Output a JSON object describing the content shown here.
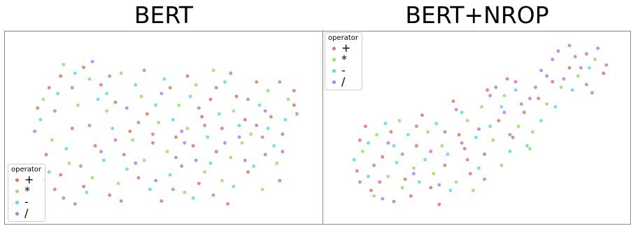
{
  "chart_data": [
    {
      "type": "scatter",
      "title": "BERT",
      "xlim": [
        0,
        100
      ],
      "ylim": [
        0,
        60
      ],
      "grid": false,
      "legend": {
        "title": "operator",
        "placement": "bottom-left",
        "entries": [
          "+",
          "*",
          "-",
          "/"
        ]
      },
      "series": [
        {
          "name": "+",
          "color": "#e0726a",
          "points": [
            [
              6,
              37
            ],
            [
              10,
              44
            ],
            [
              14,
              48
            ],
            [
              22,
              51
            ],
            [
              28,
              45
            ],
            [
              33,
              39
            ],
            [
              38,
              29
            ],
            [
              44,
              35
            ],
            [
              52,
              44
            ],
            [
              58,
              48
            ],
            [
              63,
              34
            ],
            [
              70,
              30
            ],
            [
              75,
              41
            ],
            [
              82,
              46
            ],
            [
              87,
              34
            ],
            [
              91,
              28
            ],
            [
              95,
              38
            ],
            [
              9,
              21
            ],
            [
              14,
              14
            ],
            [
              22,
              10
            ],
            [
              31,
              7
            ],
            [
              41,
              13
            ],
            [
              49,
              5
            ],
            [
              56,
              17
            ],
            [
              62,
              11
            ],
            [
              68,
              22
            ],
            [
              72,
              4
            ],
            [
              79,
              15
            ],
            [
              85,
              21
            ],
            [
              90,
              12
            ],
            [
              18,
              30
            ],
            [
              26,
              24
            ],
            [
              36,
              21
            ],
            [
              46,
              25
            ],
            [
              54,
              27
            ],
            [
              60,
              24
            ],
            [
              66,
              40
            ],
            [
              78,
              33
            ],
            [
              95,
              43
            ],
            [
              12,
              9
            ]
          ]
        },
        {
          "name": "*",
          "color": "#9edb6a",
          "points": [
            [
              8,
              40
            ],
            [
              15,
              52
            ],
            [
              24,
              47
            ],
            [
              30,
              36
            ],
            [
              35,
              49
            ],
            [
              42,
              41
            ],
            [
              48,
              32
            ],
            [
              55,
              38
            ],
            [
              61,
              45
            ],
            [
              67,
              50
            ],
            [
              74,
              36
            ],
            [
              80,
              28
            ],
            [
              86,
              43
            ],
            [
              93,
              40
            ],
            [
              11,
              26
            ],
            [
              17,
              18
            ],
            [
              25,
              13
            ],
            [
              34,
              11
            ],
            [
              43,
              19
            ],
            [
              51,
              22
            ],
            [
              57,
              8
            ],
            [
              64,
              15
            ],
            [
              70,
              12
            ],
            [
              77,
              25
            ],
            [
              84,
              9
            ],
            [
              89,
              18
            ],
            [
              20,
              38
            ],
            [
              39,
              26
            ],
            [
              58,
              30
            ],
            [
              73,
              20
            ]
          ]
        },
        {
          "name": "-",
          "color": "#5fd6e8",
          "points": [
            [
              7,
              33
            ],
            [
              13,
              42
            ],
            [
              19,
              49
            ],
            [
              27,
              40
            ],
            [
              32,
              30
            ],
            [
              40,
              45
            ],
            [
              47,
              38
            ],
            [
              53,
              33
            ],
            [
              59,
              41
            ],
            [
              65,
              27
            ],
            [
              71,
              46
            ],
            [
              76,
              31
            ],
            [
              83,
              38
            ],
            [
              92,
              33
            ],
            [
              10,
              15
            ],
            [
              16,
              23
            ],
            [
              23,
              8
            ],
            [
              29,
              19
            ],
            [
              37,
              16
            ],
            [
              45,
              9
            ],
            [
              52,
              14
            ],
            [
              60,
              6
            ],
            [
              66,
              18
            ],
            [
              74,
              10
            ],
            [
              81,
              17
            ],
            [
              88,
              24
            ],
            [
              30,
              42
            ],
            [
              50,
              47
            ],
            [
              69,
              35
            ],
            [
              86,
              30
            ]
          ]
        },
        {
          "name": "/",
          "color": "#b67ae6",
          "points": [
            [
              5,
              29
            ],
            [
              12,
              36
            ],
            [
              18,
              44
            ],
            [
              25,
              53
            ],
            [
              31,
              48
            ],
            [
              37,
              37
            ],
            [
              43,
              50
            ],
            [
              49,
              42
            ],
            [
              56,
              29
            ],
            [
              62,
              37
            ],
            [
              68,
              44
            ],
            [
              73,
              49
            ],
            [
              79,
              40
            ],
            [
              85,
              36
            ],
            [
              90,
              46
            ],
            [
              96,
              35
            ],
            [
              8,
              12
            ],
            [
              15,
              6
            ],
            [
              21,
              17
            ],
            [
              28,
              22
            ],
            [
              35,
              5
            ],
            [
              40,
              18
            ],
            [
              47,
              12
            ],
            [
              54,
              20
            ],
            [
              61,
              19
            ],
            [
              67,
              7
            ],
            [
              71,
              25
            ],
            [
              78,
              19
            ],
            [
              84,
              27
            ],
            [
              91,
              22
            ],
            [
              24,
              31
            ],
            [
              33,
              26
            ],
            [
              41,
              32
            ],
            [
              57,
              25
            ],
            [
              64,
              31
            ],
            [
              76,
              27
            ],
            [
              82,
              31
            ],
            [
              19,
              4
            ],
            [
              46,
              28
            ],
            [
              53,
              9
            ]
          ]
        }
      ]
    },
    {
      "type": "scatter",
      "title": "BERT+NROP",
      "xlim": [
        0,
        100
      ],
      "ylim": [
        0,
        60
      ],
      "grid": false,
      "legend": {
        "title": "operator",
        "placement": "top-left",
        "entries": [
          "+",
          "*",
          "-",
          "/"
        ]
      },
      "series": [
        {
          "name": "+",
          "color": "#e0726a",
          "points": [
            [
              8,
              26
            ],
            [
              7,
              15
            ],
            [
              12,
              8
            ],
            [
              16,
              20
            ],
            [
              20,
              4
            ],
            [
              24,
              12
            ],
            [
              28,
              24
            ],
            [
              33,
              9
            ],
            [
              38,
              17
            ],
            [
              43,
              28
            ],
            [
              47,
              14
            ],
            [
              52,
              21
            ],
            [
              57,
              33
            ],
            [
              62,
              27
            ],
            [
              66,
              36
            ],
            [
              71,
              41
            ],
            [
              76,
              47
            ],
            [
              82,
              52
            ],
            [
              88,
              57
            ],
            [
              94,
              50
            ],
            [
              10,
              31
            ],
            [
              19,
              29
            ],
            [
              30,
              35
            ],
            [
              41,
              40
            ],
            [
              53,
              44
            ],
            [
              60,
              48
            ],
            [
              15,
              11
            ],
            [
              26,
              6
            ],
            [
              36,
              3
            ],
            [
              45,
              23
            ]
          ]
        },
        {
          "name": "*",
          "color": "#9edb6a",
          "points": [
            [
              9,
              22
            ],
            [
              14,
              28
            ],
            [
              18,
              13
            ],
            [
              22,
              33
            ],
            [
              27,
              16
            ],
            [
              32,
              29
            ],
            [
              37,
              24
            ],
            [
              42,
              11
            ],
            [
              46,
              33
            ],
            [
              51,
              38
            ],
            [
              55,
              26
            ],
            [
              59,
              42
            ],
            [
              64,
              31
            ],
            [
              69,
              29
            ],
            [
              74,
              39
            ],
            [
              79,
              45
            ],
            [
              85,
              49
            ],
            [
              91,
              55
            ],
            [
              13,
              6
            ],
            [
              23,
              9
            ],
            [
              34,
              14
            ],
            [
              48,
              8
            ],
            [
              58,
              17
            ],
            [
              68,
              23
            ]
          ]
        },
        {
          "name": "-",
          "color": "#5fd6e8",
          "points": [
            [
              6,
              19
            ],
            [
              11,
              25
            ],
            [
              17,
              32
            ],
            [
              21,
              18
            ],
            [
              25,
              28
            ],
            [
              29,
              11
            ],
            [
              35,
              32
            ],
            [
              39,
              21
            ],
            [
              44,
              36
            ],
            [
              49,
              27
            ],
            [
              54,
              31
            ],
            [
              58,
              38
            ],
            [
              63,
              44
            ],
            [
              67,
              24
            ],
            [
              72,
              33
            ],
            [
              77,
              38
            ],
            [
              83,
              44
            ],
            [
              89,
              52
            ],
            [
              11,
              13
            ],
            [
              20,
              24
            ],
            [
              31,
              19
            ],
            [
              40,
              8
            ],
            [
              50,
              16
            ],
            [
              61,
              22
            ]
          ]
        },
        {
          "name": "/",
          "color": "#b67ae6",
          "points": [
            [
              8,
              11
            ],
            [
              13,
              17
            ],
            [
              18,
              25
            ],
            [
              23,
              21
            ],
            [
              28,
              31
            ],
            [
              33,
              22
            ],
            [
              38,
              29
            ],
            [
              42,
              37
            ],
            [
              46,
              19
            ],
            [
              50,
              30
            ],
            [
              54,
              42
            ],
            [
              59,
              36
            ],
            [
              63,
              47
            ],
            [
              68,
              41
            ],
            [
              72,
              51
            ],
            [
              76,
              55
            ],
            [
              80,
              48
            ],
            [
              84,
              56
            ],
            [
              88,
              46
            ],
            [
              92,
              59
            ],
            [
              95,
              53
            ],
            [
              86,
              52
            ],
            [
              90,
              43
            ],
            [
              78,
              58
            ],
            [
              82,
              60
            ],
            [
              70,
              45
            ],
            [
              74,
              49
            ],
            [
              65,
              39
            ],
            [
              56,
              45
            ],
            [
              16,
              5
            ],
            [
              27,
              14
            ],
            [
              36,
              10
            ],
            [
              44,
              25
            ],
            [
              52,
              12
            ],
            [
              61,
              28
            ]
          ]
        }
      ]
    }
  ]
}
